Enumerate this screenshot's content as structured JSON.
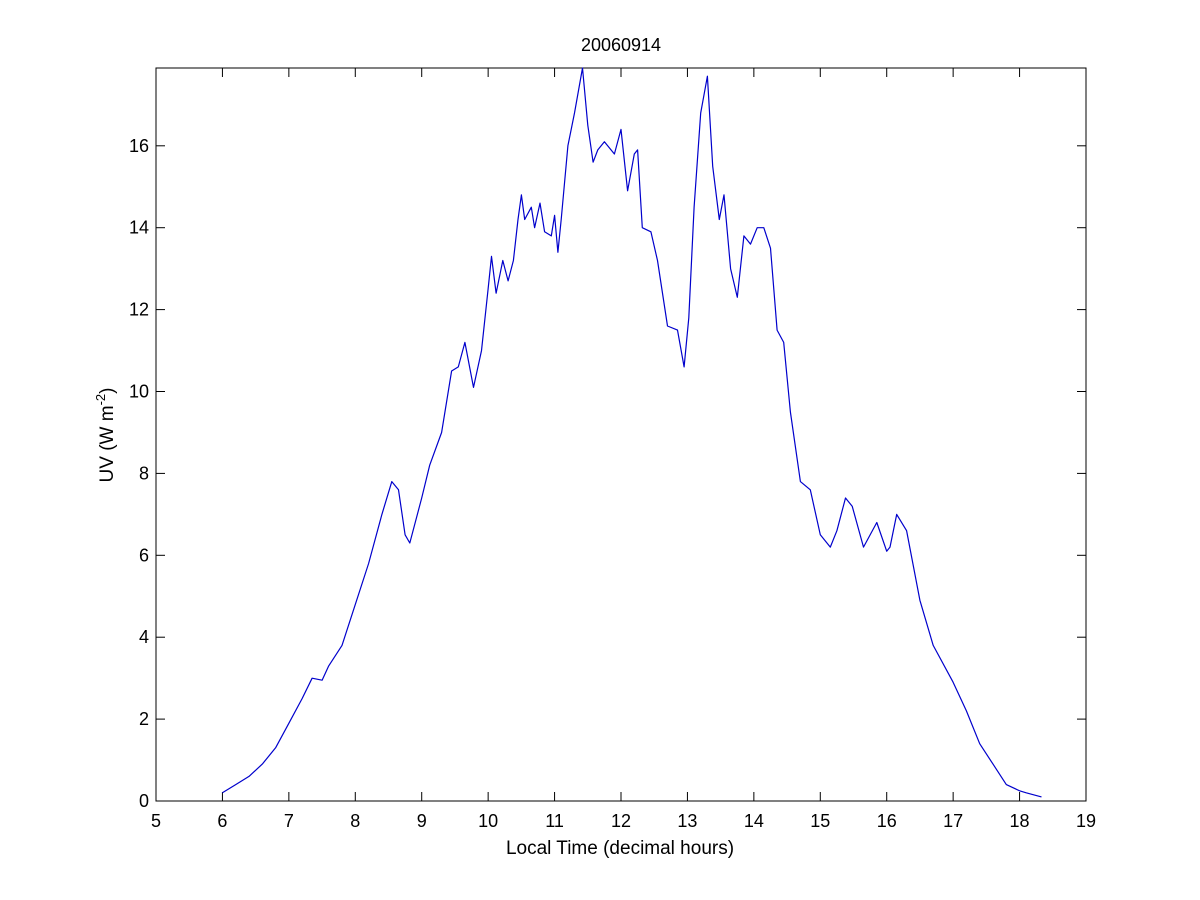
{
  "chart_data": {
    "type": "line",
    "title": "20060914",
    "xlabel": "Local Time (decimal hours)",
    "ylabel_main": "UV (W m",
    "ylabel_sup": "-2",
    "ylabel_close": ")",
    "xlim": [
      5,
      19
    ],
    "ylim": [
      0,
      17.9
    ],
    "xticks": [
      5,
      6,
      7,
      8,
      9,
      10,
      11,
      12,
      13,
      14,
      15,
      16,
      17,
      18,
      19
    ],
    "yticks": [
      0,
      2,
      4,
      6,
      8,
      10,
      12,
      14,
      16
    ],
    "line_color": "#0000cc",
    "grid": false,
    "series": [
      {
        "x": [
          6.0,
          6.2,
          6.4,
          6.6,
          6.8,
          7.0,
          7.2,
          7.35,
          7.5,
          7.6,
          7.8,
          8.0,
          8.2,
          8.4,
          8.55,
          8.65,
          8.75,
          8.82,
          9.0,
          9.12,
          9.3,
          9.45,
          9.55,
          9.65,
          9.78,
          9.9,
          10.0,
          10.05,
          10.12,
          10.22,
          10.3,
          10.38,
          10.45,
          10.5,
          10.55,
          10.65,
          10.7,
          10.78,
          10.85,
          10.95,
          11.0,
          11.05,
          11.1,
          11.2,
          11.3,
          11.42,
          11.5,
          11.58,
          11.65,
          11.75,
          11.9,
          12.0,
          12.1,
          12.2,
          12.25,
          12.32,
          12.45,
          12.55,
          12.7,
          12.85,
          12.95,
          13.02,
          13.1,
          13.2,
          13.3,
          13.38,
          13.48,
          13.55,
          13.65,
          13.75,
          13.85,
          13.95,
          14.05,
          14.15,
          14.25,
          14.35,
          14.45,
          14.55,
          14.7,
          14.85,
          15.0,
          15.15,
          15.25,
          15.38,
          15.48,
          15.65,
          15.85,
          16.0,
          16.05,
          16.15,
          16.3,
          16.5,
          16.7,
          17.0,
          17.2,
          17.4,
          17.6,
          17.8,
          18.0,
          18.1,
          18.33
        ],
        "y": [
          0.2,
          0.4,
          0.6,
          0.9,
          1.3,
          1.9,
          2.5,
          3.0,
          2.95,
          3.3,
          3.8,
          4.8,
          5.8,
          7.0,
          7.8,
          7.6,
          6.5,
          6.3,
          7.4,
          8.2,
          9.0,
          10.5,
          10.6,
          11.2,
          10.1,
          11.0,
          12.5,
          13.3,
          12.4,
          13.2,
          12.7,
          13.2,
          14.2,
          14.8,
          14.2,
          14.5,
          14.0,
          14.6,
          13.9,
          13.8,
          14.3,
          13.4,
          14.2,
          16.0,
          16.8,
          17.9,
          16.5,
          15.6,
          15.9,
          16.1,
          15.8,
          16.4,
          14.9,
          15.8,
          15.9,
          14.0,
          13.9,
          13.2,
          11.6,
          11.5,
          10.6,
          11.8,
          14.5,
          16.8,
          17.7,
          15.5,
          14.2,
          14.8,
          13.0,
          12.3,
          13.8,
          13.6,
          14.0,
          14.0,
          13.5,
          11.5,
          11.2,
          9.5,
          7.8,
          7.6,
          6.5,
          6.2,
          6.6,
          7.4,
          7.2,
          6.2,
          6.8,
          6.1,
          6.2,
          7.0,
          6.6,
          4.9,
          3.8,
          2.9,
          2.2,
          1.4,
          0.9,
          0.4,
          0.25,
          0.2,
          0.1
        ]
      }
    ]
  }
}
